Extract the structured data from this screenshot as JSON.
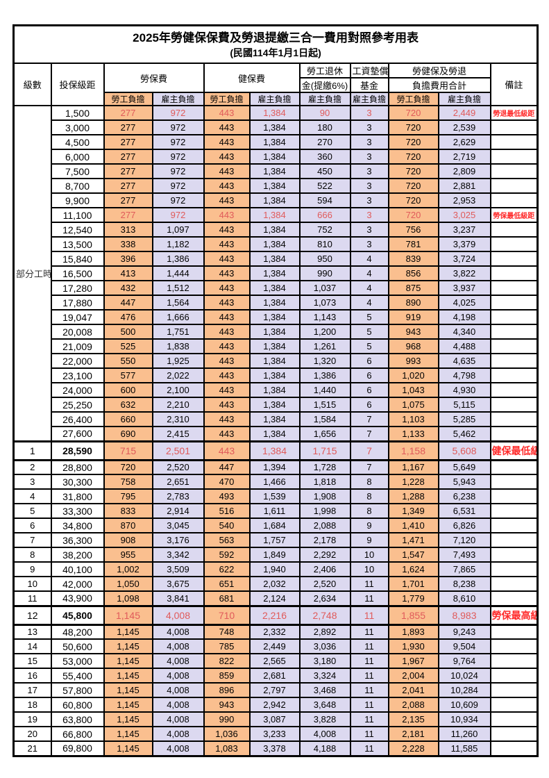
{
  "title": "2025年勞健保保費及勞退提繳三合一費用對照參考用表",
  "subtitle": "(民國114年1月1日起)",
  "colors": {
    "employee_column_fill": "#FABF8F",
    "employer_column_fill": "#DCD9F0",
    "highlight_value_red": "#E05A5A",
    "remark_red": "#FF2A2A",
    "grid_border": "#000000"
  },
  "header": {
    "level": "級數",
    "bracket": "投保級距",
    "labor_group": "勞保費",
    "health_group": "健保費",
    "pension_line1": "勞工退休",
    "pension_line2": "金(提繳6%)",
    "wage_fund_line1": "工資墊償",
    "wage_fund_line2": "基金",
    "total_line1": "勞健保及勞退",
    "total_line2": "負擔費用合計",
    "remark": "備註",
    "employee": "勞工負擔",
    "employer": "雇主負擔"
  },
  "part_time": {
    "label": "部分工時",
    "span": 23
  },
  "rows": [
    {
      "level": "",
      "bracket": "1,500",
      "v": [
        "277",
        "972",
        "443",
        "1,384",
        "90",
        "3",
        "720",
        "2,449"
      ],
      "remark": "勞退最低級距",
      "red": true,
      "big": false
    },
    {
      "level": "",
      "bracket": "3,000",
      "v": [
        "277",
        "972",
        "443",
        "1,384",
        "180",
        "3",
        "720",
        "2,539"
      ],
      "remark": "",
      "red": false,
      "big": false
    },
    {
      "level": "",
      "bracket": "4,500",
      "v": [
        "277",
        "972",
        "443",
        "1,384",
        "270",
        "3",
        "720",
        "2,629"
      ],
      "remark": "",
      "red": false,
      "big": false
    },
    {
      "level": "",
      "bracket": "6,000",
      "v": [
        "277",
        "972",
        "443",
        "1,384",
        "360",
        "3",
        "720",
        "2,719"
      ],
      "remark": "",
      "red": false,
      "big": false
    },
    {
      "level": "",
      "bracket": "7,500",
      "v": [
        "277",
        "972",
        "443",
        "1,384",
        "450",
        "3",
        "720",
        "2,809"
      ],
      "remark": "",
      "red": false,
      "big": false
    },
    {
      "level": "",
      "bracket": "8,700",
      "v": [
        "277",
        "972",
        "443",
        "1,384",
        "522",
        "3",
        "720",
        "2,881"
      ],
      "remark": "",
      "red": false,
      "big": false
    },
    {
      "level": "",
      "bracket": "9,900",
      "v": [
        "277",
        "972",
        "443",
        "1,384",
        "594",
        "3",
        "720",
        "2,953"
      ],
      "remark": "",
      "red": false,
      "big": false
    },
    {
      "level": "",
      "bracket": "11,100",
      "v": [
        "277",
        "972",
        "443",
        "1,384",
        "666",
        "3",
        "720",
        "3,025"
      ],
      "remark": "勞保最低級距",
      "red": true,
      "big": false
    },
    {
      "level": "",
      "bracket": "12,540",
      "v": [
        "313",
        "1,097",
        "443",
        "1,384",
        "752",
        "3",
        "756",
        "3,237"
      ],
      "remark": "",
      "red": false,
      "big": false
    },
    {
      "level": "",
      "bracket": "13,500",
      "v": [
        "338",
        "1,182",
        "443",
        "1,384",
        "810",
        "3",
        "781",
        "3,379"
      ],
      "remark": "",
      "red": false,
      "big": false
    },
    {
      "level": "",
      "bracket": "15,840",
      "v": [
        "396",
        "1,386",
        "443",
        "1,384",
        "950",
        "4",
        "839",
        "3,724"
      ],
      "remark": "",
      "red": false,
      "big": false
    },
    {
      "level": "",
      "bracket": "16,500",
      "v": [
        "413",
        "1,444",
        "443",
        "1,384",
        "990",
        "4",
        "856",
        "3,822"
      ],
      "remark": "",
      "red": false,
      "big": false
    },
    {
      "level": "",
      "bracket": "17,280",
      "v": [
        "432",
        "1,512",
        "443",
        "1,384",
        "1,037",
        "4",
        "875",
        "3,937"
      ],
      "remark": "",
      "red": false,
      "big": false
    },
    {
      "level": "",
      "bracket": "17,880",
      "v": [
        "447",
        "1,564",
        "443",
        "1,384",
        "1,073",
        "4",
        "890",
        "4,025"
      ],
      "remark": "",
      "red": false,
      "big": false
    },
    {
      "level": "",
      "bracket": "19,047",
      "v": [
        "476",
        "1,666",
        "443",
        "1,384",
        "1,143",
        "5",
        "919",
        "4,198"
      ],
      "remark": "",
      "red": false,
      "big": false
    },
    {
      "level": "",
      "bracket": "20,008",
      "v": [
        "500",
        "1,751",
        "443",
        "1,384",
        "1,200",
        "5",
        "943",
        "4,340"
      ],
      "remark": "",
      "red": false,
      "big": false
    },
    {
      "level": "",
      "bracket": "21,009",
      "v": [
        "525",
        "1,838",
        "443",
        "1,384",
        "1,261",
        "5",
        "968",
        "4,488"
      ],
      "remark": "",
      "red": false,
      "big": false
    },
    {
      "level": "",
      "bracket": "22,000",
      "v": [
        "550",
        "1,925",
        "443",
        "1,384",
        "1,320",
        "6",
        "993",
        "4,635"
      ],
      "remark": "",
      "red": false,
      "big": false
    },
    {
      "level": "",
      "bracket": "23,100",
      "v": [
        "577",
        "2,022",
        "443",
        "1,384",
        "1,386",
        "6",
        "1,020",
        "4,798"
      ],
      "remark": "",
      "red": false,
      "big": false
    },
    {
      "level": "",
      "bracket": "24,000",
      "v": [
        "600",
        "2,100",
        "443",
        "1,384",
        "1,440",
        "6",
        "1,043",
        "4,930"
      ],
      "remark": "",
      "red": false,
      "big": false
    },
    {
      "level": "",
      "bracket": "25,250",
      "v": [
        "632",
        "2,210",
        "443",
        "1,384",
        "1,515",
        "6",
        "1,075",
        "5,115"
      ],
      "remark": "",
      "red": false,
      "big": false
    },
    {
      "level": "",
      "bracket": "26,400",
      "v": [
        "660",
        "2,310",
        "443",
        "1,384",
        "1,584",
        "7",
        "1,103",
        "5,285"
      ],
      "remark": "",
      "red": false,
      "big": false
    },
    {
      "level": "",
      "bracket": "27,600",
      "v": [
        "690",
        "2,415",
        "443",
        "1,384",
        "1,656",
        "7",
        "1,133",
        "5,462"
      ],
      "remark": "",
      "red": false,
      "big": false
    },
    {
      "level": "1",
      "bracket": "28,590",
      "v": [
        "715",
        "2,501",
        "443",
        "1,384",
        "1,715",
        "7",
        "1,158",
        "5,608"
      ],
      "remark": "健保最低級距",
      "red": true,
      "big": true
    },
    {
      "level": "2",
      "bracket": "28,800",
      "v": [
        "720",
        "2,520",
        "447",
        "1,394",
        "1,728",
        "7",
        "1,167",
        "5,649"
      ],
      "remark": "",
      "red": false,
      "big": false
    },
    {
      "level": "3",
      "bracket": "30,300",
      "v": [
        "758",
        "2,651",
        "470",
        "1,466",
        "1,818",
        "8",
        "1,228",
        "5,943"
      ],
      "remark": "",
      "red": false,
      "big": false
    },
    {
      "level": "4",
      "bracket": "31,800",
      "v": [
        "795",
        "2,783",
        "493",
        "1,539",
        "1,908",
        "8",
        "1,288",
        "6,238"
      ],
      "remark": "",
      "red": false,
      "big": false
    },
    {
      "level": "5",
      "bracket": "33,300",
      "v": [
        "833",
        "2,914",
        "516",
        "1,611",
        "1,998",
        "8",
        "1,349",
        "6,531"
      ],
      "remark": "",
      "red": false,
      "big": false
    },
    {
      "level": "6",
      "bracket": "34,800",
      "v": [
        "870",
        "3,045",
        "540",
        "1,684",
        "2,088",
        "9",
        "1,410",
        "6,826"
      ],
      "remark": "",
      "red": false,
      "big": false
    },
    {
      "level": "7",
      "bracket": "36,300",
      "v": [
        "908",
        "3,176",
        "563",
        "1,757",
        "2,178",
        "9",
        "1,471",
        "7,120"
      ],
      "remark": "",
      "red": false,
      "big": false
    },
    {
      "level": "8",
      "bracket": "38,200",
      "v": [
        "955",
        "3,342",
        "592",
        "1,849",
        "2,292",
        "10",
        "1,547",
        "7,493"
      ],
      "remark": "",
      "red": false,
      "big": false
    },
    {
      "level": "9",
      "bracket": "40,100",
      "v": [
        "1,002",
        "3,509",
        "622",
        "1,940",
        "2,406",
        "10",
        "1,624",
        "7,865"
      ],
      "remark": "",
      "red": false,
      "big": false
    },
    {
      "level": "10",
      "bracket": "42,000",
      "v": [
        "1,050",
        "3,675",
        "651",
        "2,032",
        "2,520",
        "11",
        "1,701",
        "8,238"
      ],
      "remark": "",
      "red": false,
      "big": false
    },
    {
      "level": "11",
      "bracket": "43,900",
      "v": [
        "1,098",
        "3,841",
        "681",
        "2,124",
        "2,634",
        "11",
        "1,779",
        "8,610"
      ],
      "remark": "",
      "red": false,
      "big": false
    },
    {
      "level": "12",
      "bracket": "45,800",
      "v": [
        "1,145",
        "4,008",
        "710",
        "2,216",
        "2,748",
        "11",
        "1,855",
        "8,983"
      ],
      "remark": "勞保最高級距",
      "red": true,
      "big": true
    },
    {
      "level": "13",
      "bracket": "48,200",
      "v": [
        "1,145",
        "4,008",
        "748",
        "2,332",
        "2,892",
        "11",
        "1,893",
        "9,243"
      ],
      "remark": "",
      "red": false,
      "big": false
    },
    {
      "level": "14",
      "bracket": "50,600",
      "v": [
        "1,145",
        "4,008",
        "785",
        "2,449",
        "3,036",
        "11",
        "1,930",
        "9,504"
      ],
      "remark": "",
      "red": false,
      "big": false
    },
    {
      "level": "15",
      "bracket": "53,000",
      "v": [
        "1,145",
        "4,008",
        "822",
        "2,565",
        "3,180",
        "11",
        "1,967",
        "9,764"
      ],
      "remark": "",
      "red": false,
      "big": false
    },
    {
      "level": "16",
      "bracket": "55,400",
      "v": [
        "1,145",
        "4,008",
        "859",
        "2,681",
        "3,324",
        "11",
        "2,004",
        "10,024"
      ],
      "remark": "",
      "red": false,
      "big": false
    },
    {
      "level": "17",
      "bracket": "57,800",
      "v": [
        "1,145",
        "4,008",
        "896",
        "2,797",
        "3,468",
        "11",
        "2,041",
        "10,284"
      ],
      "remark": "",
      "red": false,
      "big": false
    },
    {
      "level": "18",
      "bracket": "60,800",
      "v": [
        "1,145",
        "4,008",
        "943",
        "2,942",
        "3,648",
        "11",
        "2,088",
        "10,609"
      ],
      "remark": "",
      "red": false,
      "big": false
    },
    {
      "level": "19",
      "bracket": "63,800",
      "v": [
        "1,145",
        "4,008",
        "990",
        "3,087",
        "3,828",
        "11",
        "2,135",
        "10,934"
      ],
      "remark": "",
      "red": false,
      "big": false
    },
    {
      "level": "20",
      "bracket": "66,800",
      "v": [
        "1,145",
        "4,008",
        "1,036",
        "3,233",
        "4,008",
        "11",
        "2,181",
        "11,260"
      ],
      "remark": "",
      "red": false,
      "big": false
    },
    {
      "level": "21",
      "bracket": "69,800",
      "v": [
        "1,145",
        "4,008",
        "1,083",
        "3,378",
        "4,188",
        "11",
        "2,228",
        "11,585"
      ],
      "remark": "",
      "red": false,
      "big": false
    }
  ]
}
